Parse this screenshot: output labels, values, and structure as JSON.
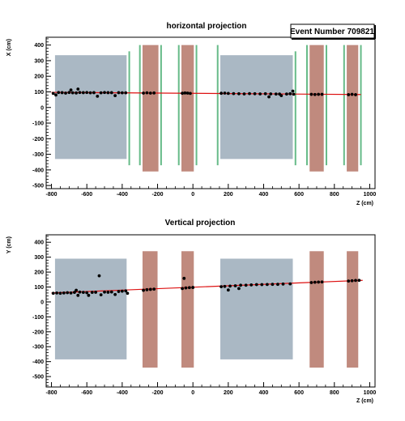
{
  "event_label": "Event Number 709821",
  "chart_data": [
    {
      "type": "scatter",
      "title": "horizontal projection",
      "xlabel": "Z (cm)",
      "ylabel": "X (cm)",
      "xlim": [
        -830,
        1030
      ],
      "ylim": [
        -520,
        450
      ],
      "xticks": [
        -800,
        -600,
        -400,
        -200,
        0,
        200,
        400,
        600,
        800,
        1000
      ],
      "yticks": [
        -500,
        -400,
        -300,
        -200,
        -100,
        0,
        100,
        200,
        300,
        400
      ],
      "grid": false,
      "colors": {
        "gray_box": "#aab8c4",
        "brown_box": "#c08a7e",
        "green_line": "#66bb88",
        "fit_line": "#dd1111",
        "hit": "#000000"
      },
      "gray_regions": [
        {
          "z": [
            -780,
            -375
          ],
          "y": [
            -330,
            335
          ]
        },
        {
          "z": [
            155,
            565
          ],
          "y": [
            -330,
            335
          ]
        }
      ],
      "brown_regions": [
        {
          "z": [
            -285,
            -195
          ],
          "y": [
            -410,
            400
          ]
        },
        {
          "z": [
            -65,
            5
          ],
          "y": [
            -410,
            400
          ]
        },
        {
          "z": [
            660,
            740
          ],
          "y": [
            -410,
            400
          ]
        },
        {
          "z": [
            870,
            935
          ],
          "y": [
            -410,
            400
          ]
        }
      ],
      "green_lines": [
        {
          "z": -360,
          "y": [
            -370,
            360
          ]
        },
        {
          "z": -300,
          "y": [
            -370,
            400
          ]
        },
        {
          "z": -180,
          "y": [
            -370,
            400
          ]
        },
        {
          "z": -80,
          "y": [
            -370,
            400
          ]
        },
        {
          "z": 20,
          "y": [
            -370,
            400
          ]
        },
        {
          "z": 140,
          "y": [
            -370,
            400
          ]
        },
        {
          "z": 580,
          "y": [
            -370,
            360
          ]
        },
        {
          "z": 645,
          "y": [
            -370,
            400
          ]
        },
        {
          "z": 755,
          "y": [
            -370,
            400
          ]
        },
        {
          "z": 855,
          "y": [
            -370,
            400
          ]
        },
        {
          "z": 950,
          "y": [
            -370,
            400
          ]
        },
        {
          "z": 1070,
          "y": [
            -370,
            360
          ]
        }
      ],
      "fit_line": {
        "z": [
          -800,
          950
        ],
        "y": [
          97,
          83
        ]
      },
      "hits": [
        [
          -790,
          90
        ],
        [
          -775,
          80
        ],
        [
          -760,
          96
        ],
        [
          -740,
          95
        ],
        [
          -720,
          92
        ],
        [
          -700,
          96
        ],
        [
          -690,
          112
        ],
        [
          -680,
          94
        ],
        [
          -660,
          93
        ],
        [
          -650,
          118
        ],
        [
          -640,
          96
        ],
        [
          -620,
          95
        ],
        [
          -600,
          96
        ],
        [
          -580,
          94
        ],
        [
          -560,
          95
        ],
        [
          -540,
          72
        ],
        [
          -520,
          94
        ],
        [
          -500,
          96
        ],
        [
          -480,
          95
        ],
        [
          -460,
          95
        ],
        [
          -440,
          76
        ],
        [
          -420,
          95
        ],
        [
          -400,
          94
        ],
        [
          -380,
          94
        ],
        [
          -280,
          92
        ],
        [
          -260,
          94
        ],
        [
          -240,
          92
        ],
        [
          -220,
          93
        ],
        [
          -60,
          91
        ],
        [
          -45,
          93
        ],
        [
          -30,
          92
        ],
        [
          -15,
          90
        ],
        [
          160,
          91
        ],
        [
          180,
          92
        ],
        [
          200,
          90
        ],
        [
          230,
          89
        ],
        [
          260,
          88
        ],
        [
          290,
          87
        ],
        [
          320,
          89
        ],
        [
          350,
          88
        ],
        [
          380,
          87
        ],
        [
          410,
          88
        ],
        [
          430,
          68
        ],
        [
          440,
          87
        ],
        [
          470,
          86
        ],
        [
          490,
          86
        ],
        [
          500,
          76
        ],
        [
          530,
          86
        ],
        [
          550,
          88
        ],
        [
          565,
          105
        ],
        [
          570,
          85
        ],
        [
          670,
          84
        ],
        [
          690,
          83
        ],
        [
          710,
          84
        ],
        [
          730,
          84
        ],
        [
          880,
          82
        ],
        [
          900,
          84
        ],
        [
          920,
          82
        ]
      ]
    },
    {
      "type": "scatter",
      "title": "Vertical projection",
      "xlabel": "Z (cm)",
      "ylabel": "Y (cm)",
      "xlim": [
        -830,
        1030
      ],
      "ylim": [
        -570,
        450
      ],
      "xticks": [
        -800,
        -600,
        -400,
        -200,
        0,
        200,
        400,
        600,
        800,
        1000
      ],
      "yticks": [
        -500,
        -400,
        -300,
        -200,
        -100,
        0,
        100,
        200,
        300,
        400
      ],
      "grid": false,
      "colors": {
        "gray_box": "#aab8c4",
        "brown_box": "#c08a7e",
        "fit_line": "#dd1111",
        "hit": "#000000"
      },
      "gray_regions": [
        {
          "z": [
            -780,
            -375
          ],
          "y": [
            -385,
            290
          ]
        },
        {
          "z": [
            155,
            565
          ],
          "y": [
            -385,
            290
          ]
        }
      ],
      "brown_regions": [
        {
          "z": [
            -285,
            -200
          ],
          "y": [
            -440,
            340
          ]
        },
        {
          "z": [
            -65,
            5
          ],
          "y": [
            -440,
            340
          ]
        },
        {
          "z": [
            660,
            740
          ],
          "y": [
            -440,
            340
          ]
        },
        {
          "z": [
            870,
            935
          ],
          "y": [
            -440,
            340
          ]
        }
      ],
      "fit_line": {
        "z": [
          -800,
          960
        ],
        "y": [
          60,
          145
        ]
      },
      "hits": [
        [
          -790,
          58
        ],
        [
          -770,
          60
        ],
        [
          -750,
          58
        ],
        [
          -730,
          60
        ],
        [
          -710,
          62
        ],
        [
          -690,
          60
        ],
        [
          -670,
          64
        ],
        [
          -660,
          78
        ],
        [
          -650,
          44
        ],
        [
          -640,
          66
        ],
        [
          -620,
          64
        ],
        [
          -600,
          62
        ],
        [
          -590,
          44
        ],
        [
          -570,
          64
        ],
        [
          -550,
          65
        ],
        [
          -530,
          175
        ],
        [
          -520,
          48
        ],
        [
          -500,
          66
        ],
        [
          -480,
          65
        ],
        [
          -460,
          67
        ],
        [
          -440,
          50
        ],
        [
          -420,
          70
        ],
        [
          -400,
          72
        ],
        [
          -380,
          74
        ],
        [
          -370,
          58
        ],
        [
          -280,
          78
        ],
        [
          -260,
          82
        ],
        [
          -240,
          84
        ],
        [
          -220,
          86
        ],
        [
          -60,
          90
        ],
        [
          -50,
          158
        ],
        [
          -40,
          94
        ],
        [
          -20,
          96
        ],
        [
          0,
          97
        ],
        [
          160,
          102
        ],
        [
          180,
          104
        ],
        [
          200,
          80
        ],
        [
          210,
          106
        ],
        [
          240,
          108
        ],
        [
          260,
          90
        ],
        [
          270,
          112
        ],
        [
          300,
          112
        ],
        [
          330,
          114
        ],
        [
          360,
          116
        ],
        [
          390,
          116
        ],
        [
          420,
          117
        ],
        [
          450,
          118
        ],
        [
          480,
          118
        ],
        [
          510,
          120
        ],
        [
          550,
          121
        ],
        [
          670,
          130
        ],
        [
          690,
          132
        ],
        [
          710,
          133
        ],
        [
          730,
          134
        ],
        [
          880,
          140
        ],
        [
          900,
          142
        ],
        [
          920,
          144
        ],
        [
          940,
          145
        ]
      ]
    }
  ]
}
